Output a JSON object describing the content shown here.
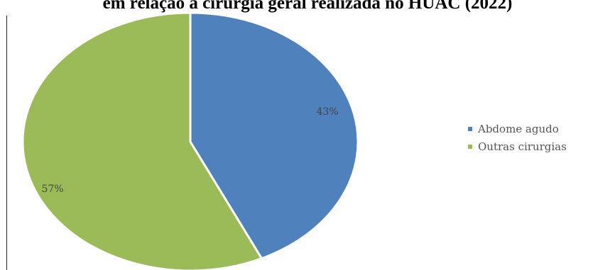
{
  "chart_data": {
    "type": "pie",
    "title": "em relação à cirurgia geral realizada no HUAC (2022)",
    "categories": [
      "Abdome agudo",
      "Outras cirurgias"
    ],
    "values": [
      43,
      57
    ],
    "labels": [
      "43%",
      "57%"
    ],
    "colors": [
      "#4f81bd",
      "#9bbb59"
    ],
    "legend_position": "right"
  }
}
